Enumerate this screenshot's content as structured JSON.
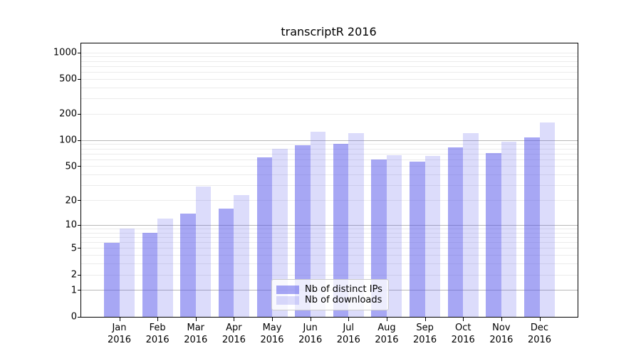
{
  "chart_data": {
    "type": "bar",
    "title": "transcriptR 2016",
    "categories": [
      "Jan",
      "Feb",
      "Mar",
      "Apr",
      "May",
      "Jun",
      "Jul",
      "Aug",
      "Sep",
      "Oct",
      "Nov",
      "Dec"
    ],
    "tick_year": "2016",
    "series": [
      {
        "name": "Nb of distinct IPs",
        "color": "rgba(79,79,233,0.5)",
        "values": [
          6,
          8,
          14,
          16,
          64,
          88,
          92,
          60,
          57,
          84,
          71,
          108
        ]
      },
      {
        "name": "Nb of downloads",
        "color": "rgba(79,79,233,0.2)",
        "values": [
          9,
          12,
          29,
          23,
          80,
          126,
          122,
          68,
          67,
          121,
          97,
          160
        ]
      }
    ],
    "yticks": [
      0,
      1,
      2,
      5,
      10,
      20,
      50,
      100,
      200,
      500,
      1000
    ],
    "ytick_labels": [
      "0",
      "1",
      "2",
      "5",
      "10",
      "20",
      "50",
      "100",
      "200",
      "500",
      "1000"
    ],
    "yscale": "log1p",
    "ylim": [
      0,
      1278
    ],
    "major_grid_values": [
      1,
      10,
      100
    ],
    "grid": true,
    "legend_position": "lower-center-inside"
  }
}
